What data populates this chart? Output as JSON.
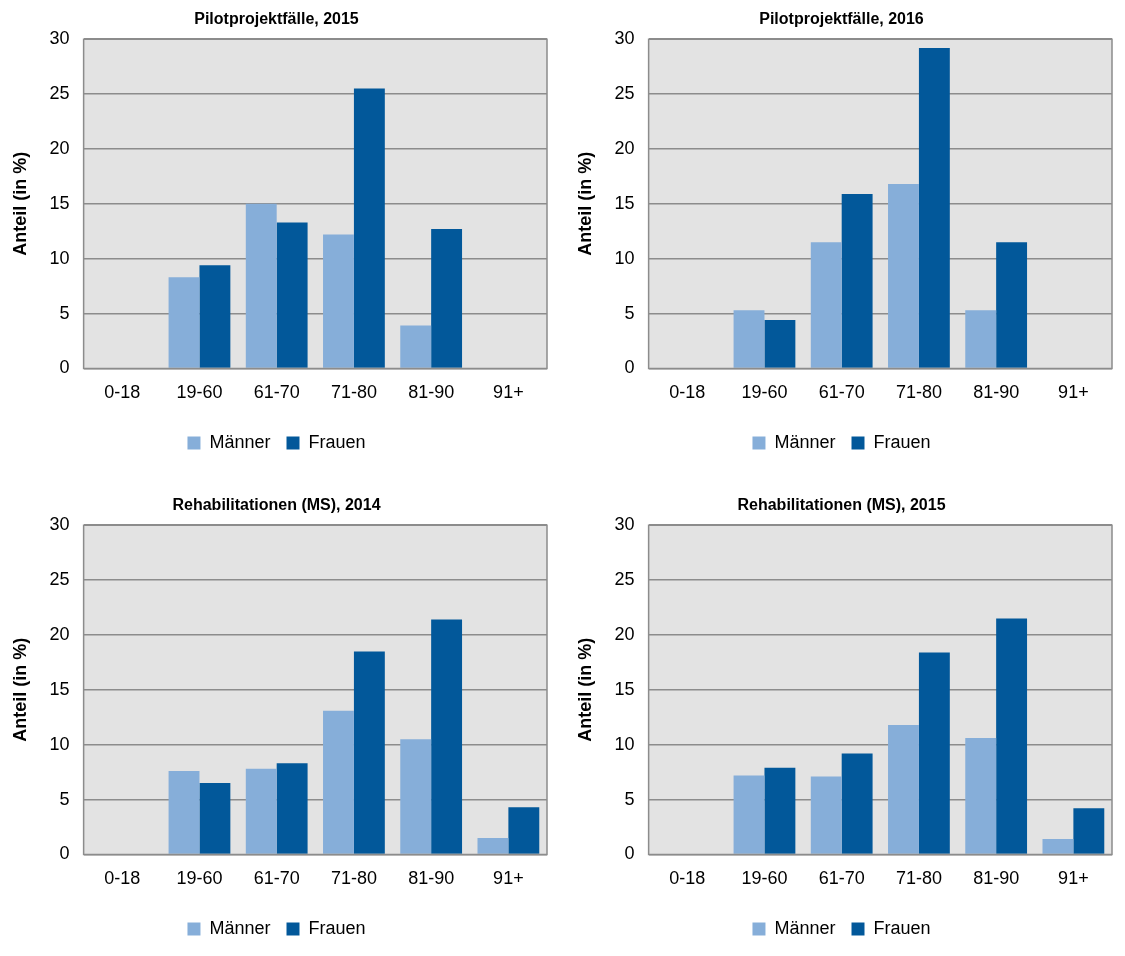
{
  "chart_data": [
    {
      "type": "bar",
      "title": "Pilotprojektfälle, 2015",
      "ylabel": "Anteil (in %)",
      "categories": [
        "0-18",
        "19-60",
        "61-70",
        "71-80",
        "81-90",
        "91+"
      ],
      "series": [
        {
          "name": "Männer",
          "color": "#86aed9",
          "values": [
            0,
            8.3,
            15.0,
            12.2,
            3.9,
            0
          ]
        },
        {
          "name": "Frauen",
          "color": "#02589a",
          "values": [
            0,
            9.4,
            13.3,
            25.5,
            12.7,
            0
          ]
        }
      ],
      "ylim": [
        0,
        30
      ],
      "yticks": [
        0,
        5,
        10,
        15,
        20,
        25,
        30
      ],
      "grid": "y",
      "legend": "bottom"
    },
    {
      "type": "bar",
      "title": "Pilotprojektfälle, 2016",
      "ylabel": "Anteil (in %)",
      "categories": [
        "0-18",
        "19-60",
        "61-70",
        "71-80",
        "81-90",
        "91+"
      ],
      "series": [
        {
          "name": "Männer",
          "color": "#86aed9",
          "values": [
            0,
            5.3,
            11.5,
            16.8,
            5.3,
            0
          ]
        },
        {
          "name": "Frauen",
          "color": "#02589a",
          "values": [
            0,
            4.4,
            15.9,
            29.2,
            11.5,
            0
          ]
        }
      ],
      "ylim": [
        0,
        30
      ],
      "yticks": [
        0,
        5,
        10,
        15,
        20,
        25,
        30
      ],
      "grid": "y",
      "legend": "bottom"
    },
    {
      "type": "bar",
      "title": "Rehabilitationen (MS), 2014",
      "ylabel": "Anteil (in %)",
      "categories": [
        "0-18",
        "19-60",
        "61-70",
        "71-80",
        "81-90",
        "91+"
      ],
      "series": [
        {
          "name": "Männer",
          "color": "#86aed9",
          "values": [
            0,
            7.6,
            7.8,
            13.1,
            10.5,
            1.5
          ]
        },
        {
          "name": "Frauen",
          "color": "#02589a",
          "values": [
            0,
            6.5,
            8.3,
            18.5,
            21.4,
            4.3
          ]
        }
      ],
      "ylim": [
        0,
        30
      ],
      "yticks": [
        0,
        5,
        10,
        15,
        20,
        25,
        30
      ],
      "grid": "y",
      "legend": "bottom"
    },
    {
      "type": "bar",
      "title": "Rehabilitationen (MS), 2015",
      "ylabel": "Anteil (in %)",
      "categories": [
        "0-18",
        "19-60",
        "61-70",
        "71-80",
        "81-90",
        "91+"
      ],
      "series": [
        {
          "name": "Männer",
          "color": "#86aed9",
          "values": [
            0,
            7.2,
            7.1,
            11.8,
            10.6,
            1.4
          ]
        },
        {
          "name": "Frauen",
          "color": "#02589a",
          "values": [
            0,
            7.9,
            9.2,
            18.4,
            21.5,
            4.2
          ]
        }
      ],
      "ylim": [
        0,
        30
      ],
      "yticks": [
        0,
        5,
        10,
        15,
        20,
        25,
        30
      ],
      "grid": "y",
      "legend": "bottom"
    }
  ]
}
